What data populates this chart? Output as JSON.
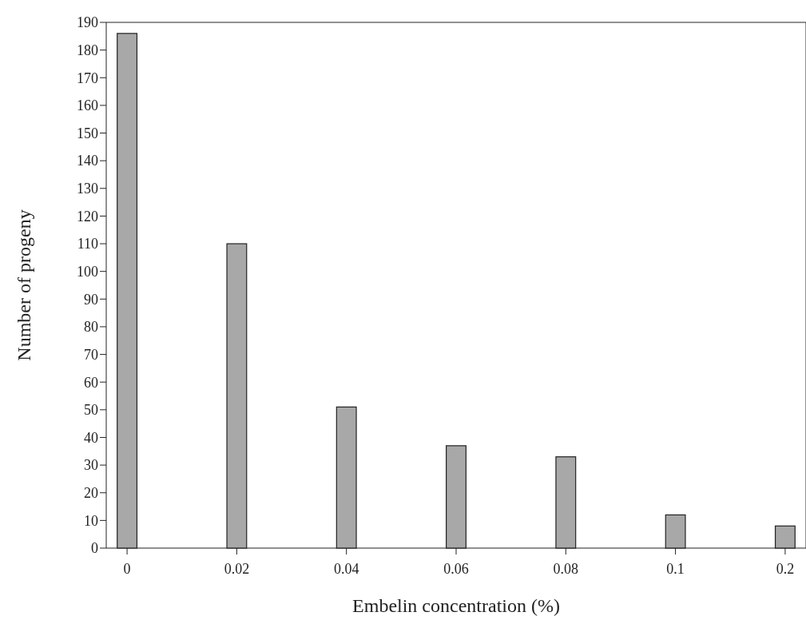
{
  "chart_data": {
    "type": "bar",
    "xlabel": "Embelin concentration (%)",
    "ylabel": "Number of progeny",
    "categories": [
      "0",
      "0.02",
      "0.04",
      "0.06",
      "0.08",
      "0.1",
      "0.2"
    ],
    "values": [
      186,
      110,
      51,
      37,
      33,
      12,
      8
    ],
    "color": "#a8a8a8",
    "ylim": [
      0,
      190
    ],
    "yticks": [
      0,
      10,
      20,
      30,
      40,
      50,
      60,
      70,
      80,
      90,
      100,
      110,
      120,
      130,
      140,
      150,
      160,
      170,
      180,
      190
    ],
    "grid": false
  }
}
